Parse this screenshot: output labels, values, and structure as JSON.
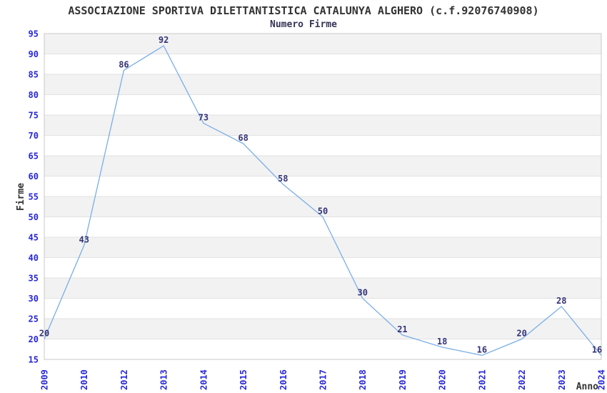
{
  "header": {
    "title": "ASSOCIAZIONE SPORTIVA DILETTANTISTICA CATALUNYA ALGHERO (c.f.92076740908)",
    "subtitle": "Numero Firme"
  },
  "chart_data": {
    "type": "line",
    "title": "ASSOCIAZIONE SPORTIVA DILETTANTISTICA CATALUNYA ALGHERO (c.f.92076740908)",
    "subtitle": "Numero Firme",
    "categories": [
      "2009",
      "2010",
      "2012",
      "2013",
      "2014",
      "2015",
      "2016",
      "2017",
      "2018",
      "2019",
      "2020",
      "2021",
      "2022",
      "2023",
      "2024"
    ],
    "values": [
      20,
      43,
      86,
      92,
      73,
      68,
      58,
      50,
      30,
      21,
      18,
      16,
      20,
      28,
      16
    ],
    "xlabel": "Anno",
    "ylabel": "Firme",
    "ylim": [
      15,
      95
    ],
    "ytick_step": 5,
    "yticks": [
      95,
      90,
      85,
      80,
      75,
      70,
      65,
      60,
      55,
      50,
      45,
      40,
      35,
      30,
      25,
      20,
      15
    ],
    "grid": true,
    "legend": "none",
    "colors": {
      "line": "#7aaee8",
      "point_label": "#333377",
      "tick_label": "#2727d9",
      "axis_title": "#333333",
      "band": "#f2f2f2",
      "gridline": "#e2e2e2",
      "plot_border": "#c9c9c9",
      "background": "#ffffff"
    }
  }
}
